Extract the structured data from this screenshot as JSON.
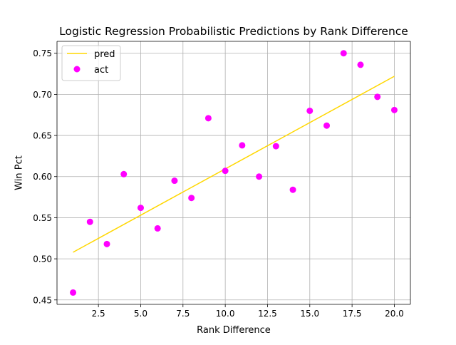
{
  "chart_data": {
    "type": "scatter",
    "title": "Logistic Regression Probabilistic Predictions by Rank Difference",
    "xlabel": "Rank Difference",
    "ylabel": "Win Pct",
    "xlim": [
      0.05,
      20.95
    ],
    "ylim": [
      0.4446,
      0.7645
    ],
    "xticks": [
      2.5,
      5.0,
      7.5,
      10.0,
      12.5,
      15.0,
      17.5,
      20.0
    ],
    "xtick_labels": [
      "2.5",
      "5.0",
      "7.5",
      "10.0",
      "12.5",
      "15.0",
      "17.5",
      "20.0"
    ],
    "yticks": [
      0.45,
      0.5,
      0.55,
      0.6,
      0.65,
      0.7,
      0.75
    ],
    "ytick_labels": [
      "0.45",
      "0.50",
      "0.55",
      "0.60",
      "0.65",
      "0.70",
      "0.75"
    ],
    "grid": true,
    "legend_position": "top-left",
    "series": [
      {
        "name": "pred",
        "kind": "line",
        "color": "#ffd700",
        "x": [
          1,
          20
        ],
        "y": [
          0.508,
          0.722
        ]
      },
      {
        "name": "act",
        "kind": "scatter",
        "color": "#ff00ff",
        "x": [
          1,
          2,
          3,
          4,
          5,
          6,
          7,
          8,
          9,
          10,
          11,
          12,
          13,
          14,
          15,
          16,
          17,
          18,
          19,
          20
        ],
        "y": [
          0.459,
          0.545,
          0.518,
          0.603,
          0.562,
          0.537,
          0.595,
          0.574,
          0.671,
          0.607,
          0.638,
          0.6,
          0.637,
          0.584,
          0.68,
          0.662,
          0.75,
          0.736,
          0.697,
          0.681
        ]
      }
    ]
  }
}
